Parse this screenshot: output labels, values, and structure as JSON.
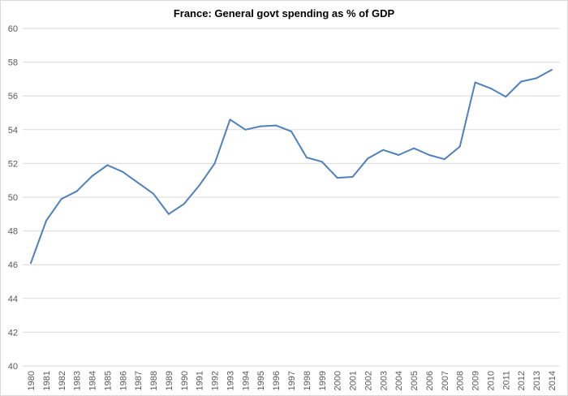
{
  "chart_data": {
    "type": "line",
    "title": "France: General govt spending as % of GDP",
    "xlabel": "",
    "ylabel": "",
    "ylim": [
      40,
      60
    ],
    "yticks": [
      40,
      42,
      44,
      46,
      48,
      50,
      52,
      54,
      56,
      58,
      60
    ],
    "grid": true,
    "legend": "none",
    "line_color": "#4f81bd",
    "categories": [
      "1980",
      "1981",
      "1982",
      "1983",
      "1984",
      "1985",
      "1986",
      "1987",
      "1988",
      "1989",
      "1990",
      "1991",
      "1992",
      "1993",
      "1994",
      "1995",
      "1996",
      "1997",
      "1998",
      "1999",
      "2000",
      "2001",
      "2002",
      "2003",
      "2004",
      "2005",
      "2006",
      "2007",
      "2008",
      "2009",
      "2010",
      "2011",
      "2012",
      "2013",
      "2014"
    ],
    "values": [
      46.1,
      48.6,
      49.9,
      50.35,
      51.25,
      51.9,
      51.5,
      50.85,
      50.2,
      49.0,
      49.6,
      50.7,
      52.0,
      54.6,
      54.0,
      54.2,
      54.25,
      53.9,
      52.35,
      52.1,
      51.15,
      51.2,
      52.3,
      52.8,
      52.5,
      52.9,
      52.5,
      52.25,
      53.0,
      56.8,
      56.45,
      55.95,
      56.85,
      57.05,
      57.55
    ]
  }
}
